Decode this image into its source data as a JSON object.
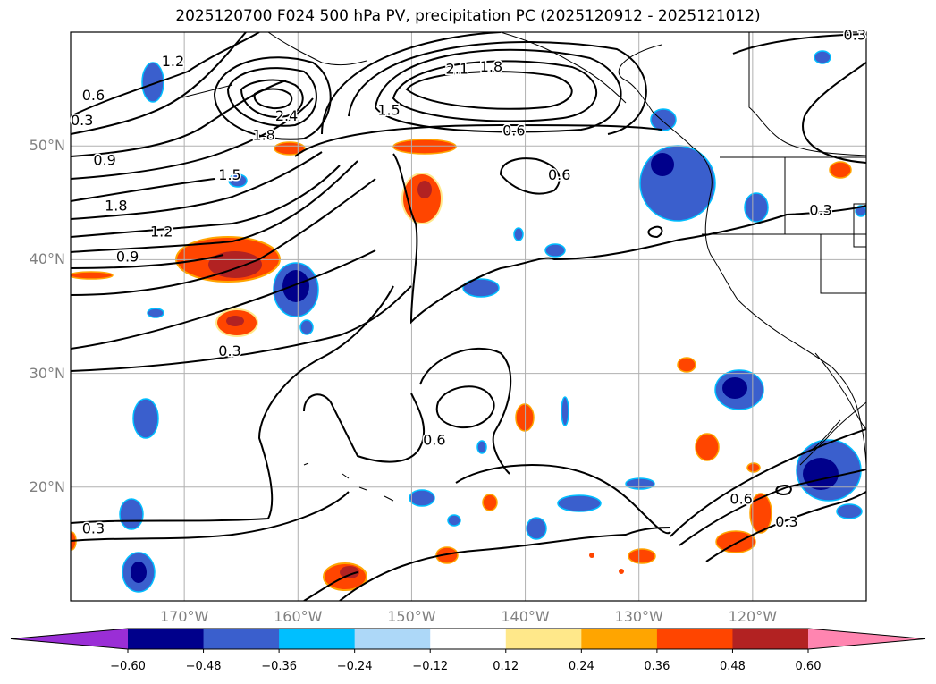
{
  "title": "2025120700 F024 500 hPa PV, precipitation PC (2025120912 - 2025121012)",
  "map": {
    "lon_range": [
      -180,
      -110
    ],
    "lat_range": [
      10,
      60
    ],
    "lat_labels": [
      {
        "text": "50°N",
        "lat": 50
      },
      {
        "text": "40°N",
        "lat": 40
      },
      {
        "text": "30°N",
        "lat": 30
      },
      {
        "text": "20°N",
        "lat": 20
      }
    ],
    "lon_labels": [
      {
        "text": "170°W",
        "lon": -170
      },
      {
        "text": "160°W",
        "lon": -160
      },
      {
        "text": "150°W",
        "lon": -150
      },
      {
        "text": "140°W",
        "lon": -140
      },
      {
        "text": "130°W",
        "lon": -130
      },
      {
        "text": "120°W",
        "lon": -120
      }
    ],
    "contour_labels": [
      {
        "text": "1.2",
        "lon": -171,
        "lat": 57.5
      },
      {
        "text": "0.6",
        "lon": -178,
        "lat": 54.5
      },
      {
        "text": "0.3",
        "lon": -179,
        "lat": 52.3
      },
      {
        "text": "2.4",
        "lon": -161,
        "lat": 52.7
      },
      {
        "text": "1.8",
        "lon": -163,
        "lat": 51.0
      },
      {
        "text": "0.9",
        "lon": -177,
        "lat": 48.8
      },
      {
        "text": "1.5",
        "lon": -166,
        "lat": 47.5
      },
      {
        "text": "1.8",
        "lon": -176,
        "lat": 44.8
      },
      {
        "text": "1.2",
        "lon": -172,
        "lat": 42.5
      },
      {
        "text": "0.9",
        "lon": -175,
        "lat": 40.3
      },
      {
        "text": "0.3",
        "lon": -166,
        "lat": 32.0
      },
      {
        "text": "2.1",
        "lon": -146,
        "lat": 56.8
      },
      {
        "text": "1.8",
        "lon": -143,
        "lat": 57.0
      },
      {
        "text": "1.5",
        "lon": -152,
        "lat": 53.2
      },
      {
        "text": "0.6",
        "lon": -141,
        "lat": 51.4
      },
      {
        "text": "0.6",
        "lon": -137,
        "lat": 47.5
      },
      {
        "text": "0.3",
        "lon": -111,
        "lat": 59.8
      },
      {
        "text": "0.3",
        "lon": -114,
        "lat": 44.4
      },
      {
        "text": "0.6",
        "lon": -148,
        "lat": 24.2
      },
      {
        "text": "0.3",
        "lon": -178,
        "lat": 16.4
      },
      {
        "text": "0.6",
        "lon": -121,
        "lat": 19.0
      },
      {
        "text": "0.3",
        "lon": -117,
        "lat": 17.0
      }
    ],
    "colors": {
      "neg_0.60": "#9a2ed6",
      "neg_0.48": "#00008b",
      "neg_0.36": "#3a5fcd",
      "neg_0.24": "#00bfff",
      "neg_0.12": "#add8f8",
      "pos_0.12": "#ffe88a",
      "pos_0.24": "#ffa500",
      "pos_0.36": "#ff4500",
      "pos_0.48": "#b22222",
      "pos_0.60": "#ff85b0"
    }
  },
  "colorbar": {
    "ticks": [
      "−0.60",
      "−0.48",
      "−0.36",
      "−0.24",
      "−0.12",
      "0.12",
      "0.24",
      "0.36",
      "0.48",
      "0.60"
    ],
    "bins": [
      "#9a2ed6",
      "#00008b",
      "#3a5fcd",
      "#00bfff",
      "#add8f8",
      "#ffffff",
      "#ffe88a",
      "#ffa500",
      "#ff4500",
      "#b22222",
      "#ff85b0"
    ]
  }
}
